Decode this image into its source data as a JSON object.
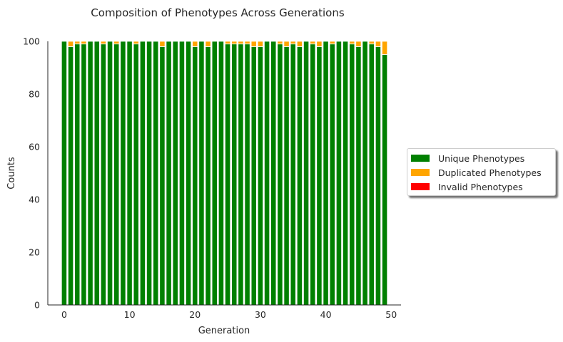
{
  "chart_data": {
    "type": "bar",
    "stacked": true,
    "title": "Composition of Phenotypes Across Generations",
    "xlabel": "Generation",
    "ylabel": "Counts",
    "x": [
      0,
      1,
      2,
      3,
      4,
      5,
      6,
      7,
      8,
      9,
      10,
      11,
      12,
      13,
      14,
      15,
      16,
      17,
      18,
      19,
      20,
      21,
      22,
      23,
      24,
      25,
      26,
      27,
      28,
      29,
      30,
      31,
      32,
      33,
      34,
      35,
      36,
      37,
      38,
      39,
      40,
      41,
      42,
      43,
      44,
      45,
      46,
      47,
      48,
      49
    ],
    "xlim": [
      -2.5,
      51.5
    ],
    "ylim": [
      0,
      100
    ],
    "xticks": [
      "0",
      "10",
      "20",
      "30",
      "40",
      "50"
    ],
    "yticks": [
      "0",
      "20",
      "40",
      "60",
      "80",
      "100"
    ],
    "grid": false,
    "legend_position": "center-right outside",
    "series": [
      {
        "name": "Unique Phenotypes",
        "color": "#008000",
        "values": [
          100,
          98,
          99,
          99,
          100,
          100,
          99,
          100,
          99,
          100,
          100,
          99,
          100,
          100,
          100,
          98,
          100,
          100,
          100,
          100,
          98,
          100,
          98,
          100,
          100,
          99,
          99,
          99,
          99,
          98,
          98,
          100,
          100,
          99,
          98,
          99,
          98,
          100,
          99,
          98,
          100,
          99,
          100,
          100,
          99,
          98,
          100,
          99,
          98,
          95
        ]
      },
      {
        "name": "Duplicated Phenotypes",
        "color": "#ffa500",
        "values": [
          0,
          2,
          1,
          1,
          0,
          0,
          1,
          0,
          1,
          0,
          0,
          1,
          0,
          0,
          0,
          2,
          0,
          0,
          0,
          0,
          2,
          0,
          2,
          0,
          0,
          1,
          1,
          1,
          1,
          2,
          2,
          0,
          0,
          1,
          2,
          1,
          2,
          0,
          1,
          2,
          0,
          1,
          0,
          0,
          1,
          2,
          0,
          1,
          2,
          5
        ]
      },
      {
        "name": "Invalid Phenotypes",
        "color": "#ff0000",
        "values": [
          0,
          0,
          0,
          0,
          0,
          0,
          0,
          0,
          0,
          0,
          0,
          0,
          0,
          0,
          0,
          0,
          0,
          0,
          0,
          0,
          0,
          0,
          0,
          0,
          0,
          0,
          0,
          0,
          0,
          0,
          0,
          0,
          0,
          0,
          0,
          0,
          0,
          0,
          0,
          0,
          0,
          0,
          0,
          0,
          0,
          0,
          0,
          0,
          0,
          0
        ]
      }
    ]
  }
}
